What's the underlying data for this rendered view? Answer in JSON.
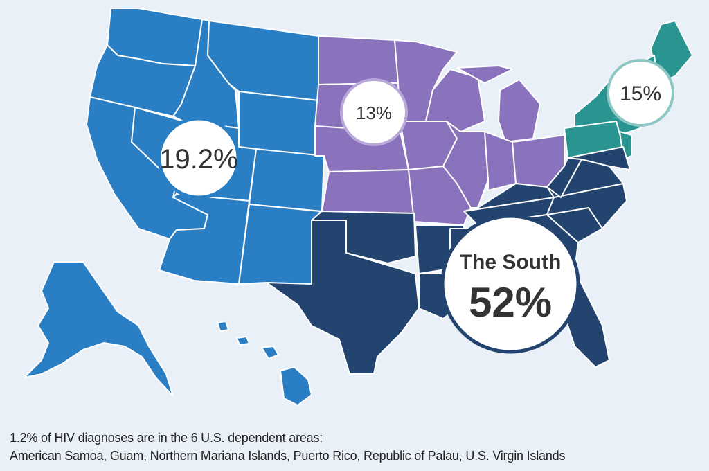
{
  "regions": {
    "west": {
      "percent_label": "19.2%",
      "color": "#2a7ec4",
      "ring_color": "#2a7ec4"
    },
    "midwest": {
      "percent_label": "13%",
      "color": "#8a72bc",
      "ring_color": "#b9a9da"
    },
    "northeast": {
      "percent_label": "15%",
      "color": "#2a9490",
      "ring_color": "#8dc7c4"
    },
    "south": {
      "name": "The South",
      "percent_label": "52%",
      "color": "#23446f",
      "ring_color": "#23446f"
    }
  },
  "footnote": {
    "line1": "1.2% of HIV diagnoses are in the 6 U.S. dependent areas:",
    "line2": "American Samoa, Guam, Northern Mariana Islands, Puerto Rico, Republic of Palau, U.S. Virgin Islands"
  },
  "colors": {
    "background": "#e9f0f8",
    "state_border": "#ffffff"
  }
}
